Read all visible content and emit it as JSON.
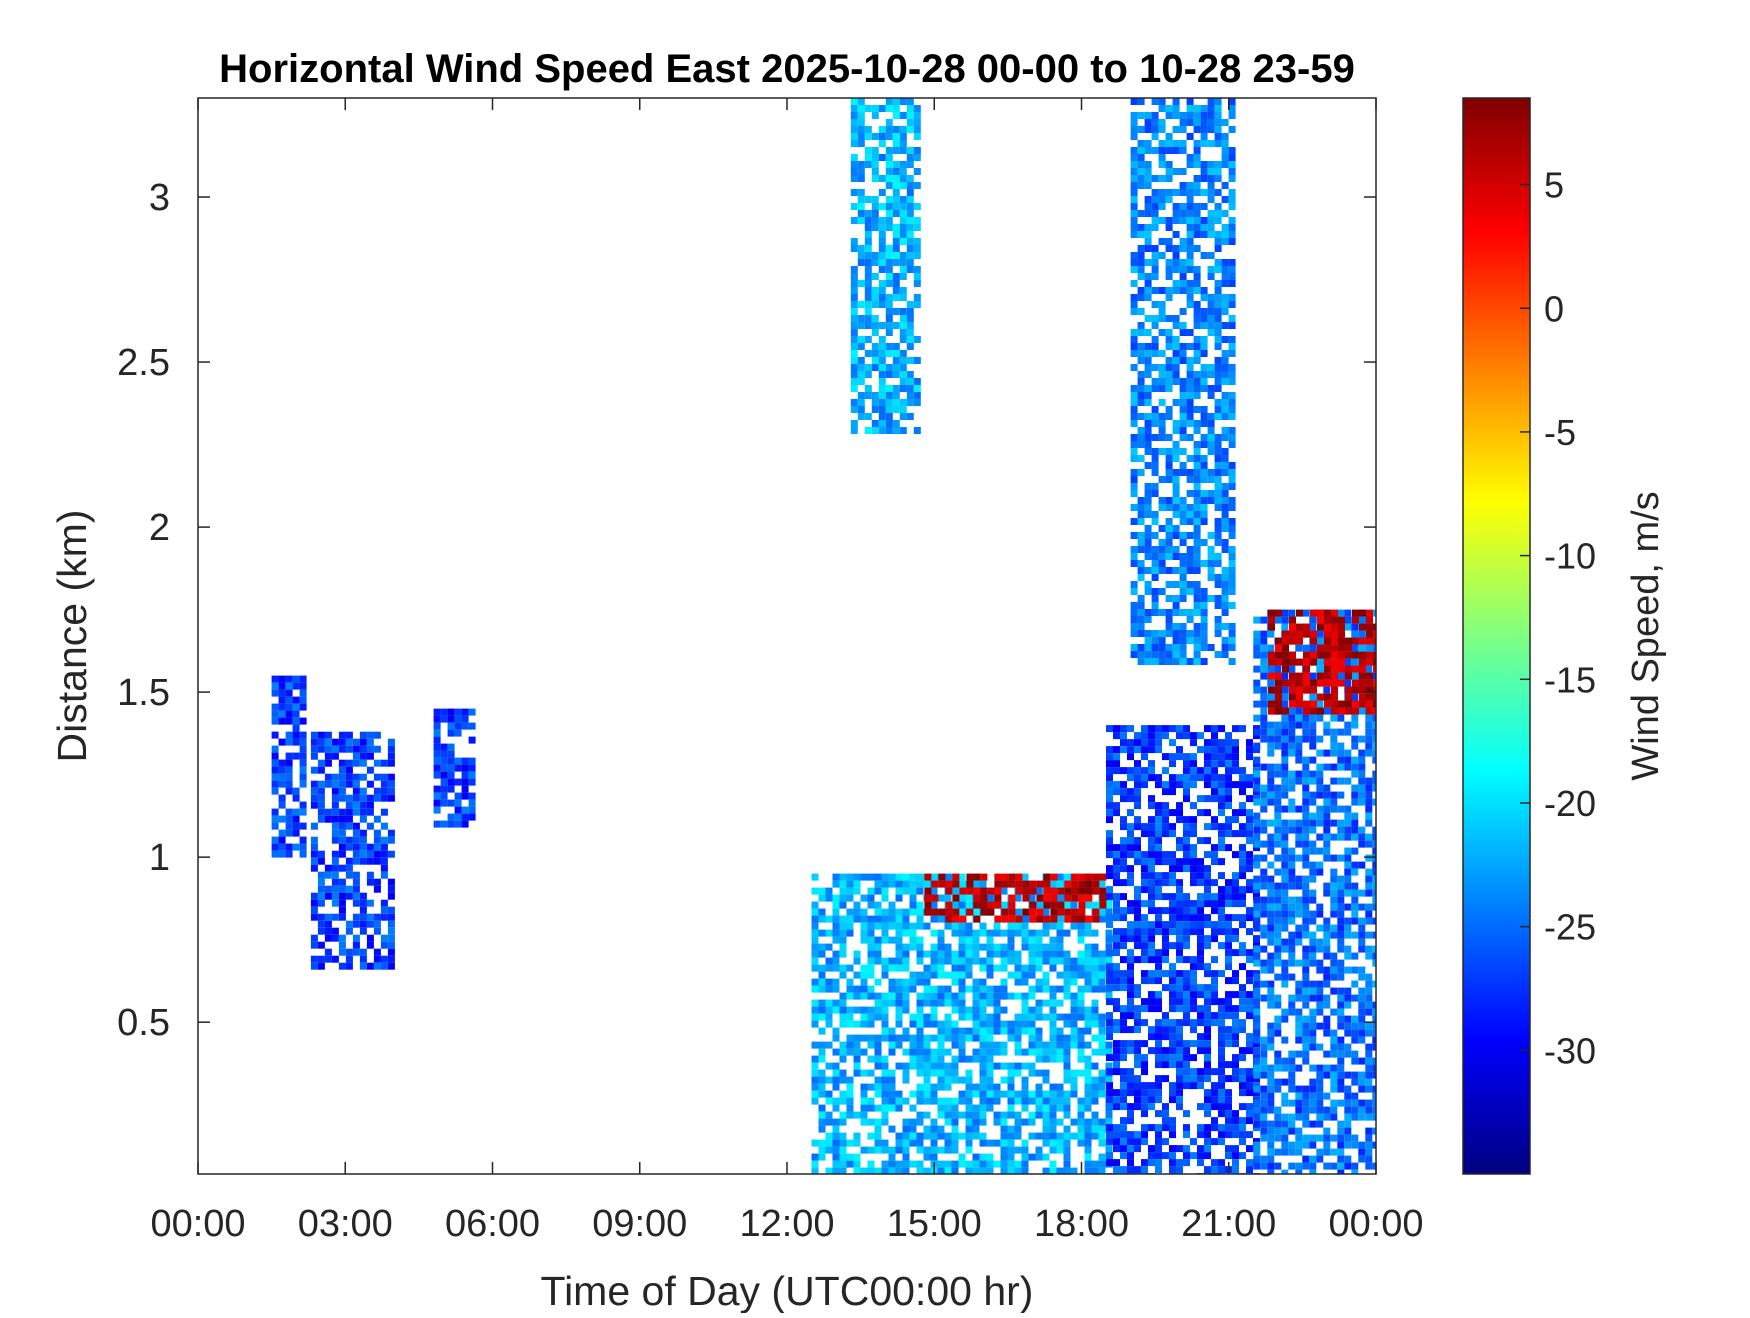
{
  "chart_data": {
    "type": "heatmap",
    "title": "Horizontal Wind Speed East 2025-10-28 00-00 to 10-28 23-59",
    "xlabel": "Time of Day (UTC00:00 hr)",
    "ylabel": "Distance (km)",
    "colorbar_label": "Wind Speed, m/s",
    "x_unit": "hours",
    "xlim": [
      0,
      24
    ],
    "ylim": [
      0.04,
      3.3
    ],
    "x_ticks": [
      0,
      3,
      6,
      9,
      12,
      15,
      18,
      21,
      24
    ],
    "x_tick_labels": [
      "00:00",
      "03:00",
      "06:00",
      "09:00",
      "12:00",
      "15:00",
      "18:00",
      "21:00",
      "00:00"
    ],
    "y_ticks": [
      0.5,
      1,
      1.5,
      2,
      2.5,
      3
    ],
    "y_tick_labels": [
      "0.5",
      "1",
      "1.5",
      "2",
      "2.5",
      "3"
    ],
    "clim": [
      -35,
      8.5
    ],
    "colorbar_ticks": [
      5,
      0,
      -5,
      -10,
      -15,
      -20,
      -25,
      -30
    ],
    "colorbar_tick_labels": [
      "5",
      "0",
      "-5",
      "-10",
      "-15",
      "-20",
      "-25",
      "-30"
    ],
    "colormap": "jet",
    "colormap_stops": [
      "#000080",
      "#0000ff",
      "#0080ff",
      "#00ffff",
      "#80ff80",
      "#ffff00",
      "#ff8000",
      "#ff0000",
      "#800000"
    ],
    "background_color": "#ffffff",
    "grid": false,
    "legend": "none",
    "regions": [
      {
        "name": "morning-streak-1",
        "x": [
          1.5,
          2.2
        ],
        "y": [
          1.0,
          1.55
        ],
        "value": -27
      },
      {
        "name": "morning-streak-2",
        "x": [
          2.3,
          4.0
        ],
        "y": [
          0.68,
          1.38
        ],
        "value": -27
      },
      {
        "name": "morning-patch",
        "x": [
          4.8,
          5.6
        ],
        "y": [
          1.1,
          1.45
        ],
        "value": -27
      },
      {
        "name": "afternoon-layer",
        "x": [
          12.5,
          18.5
        ],
        "y": [
          0.04,
          0.95
        ],
        "value": -22
      },
      {
        "name": "afternoon-top-edge",
        "x": [
          14.8,
          18.4
        ],
        "y": [
          0.82,
          0.95
        ],
        "value": 6
      },
      {
        "name": "evening-layer",
        "x": [
          18.5,
          21.5
        ],
        "y": [
          0.04,
          1.4
        ],
        "value": -27
      },
      {
        "name": "night-arc",
        "x": [
          21.5,
          24.0
        ],
        "y": [
          0.04,
          1.75
        ],
        "value": -25
      },
      {
        "name": "night-arc-top-edge",
        "x": [
          21.8,
          24.0
        ],
        "y": [
          1.45,
          1.75
        ],
        "value": 6
      },
      {
        "name": "high-plume-1",
        "x": [
          13.3,
          14.6
        ],
        "y": [
          2.3,
          3.3
        ],
        "value": -22
      },
      {
        "name": "high-plume-2",
        "x": [
          19.0,
          21.0
        ],
        "y": [
          1.6,
          3.3
        ],
        "value": -24
      }
    ]
  }
}
